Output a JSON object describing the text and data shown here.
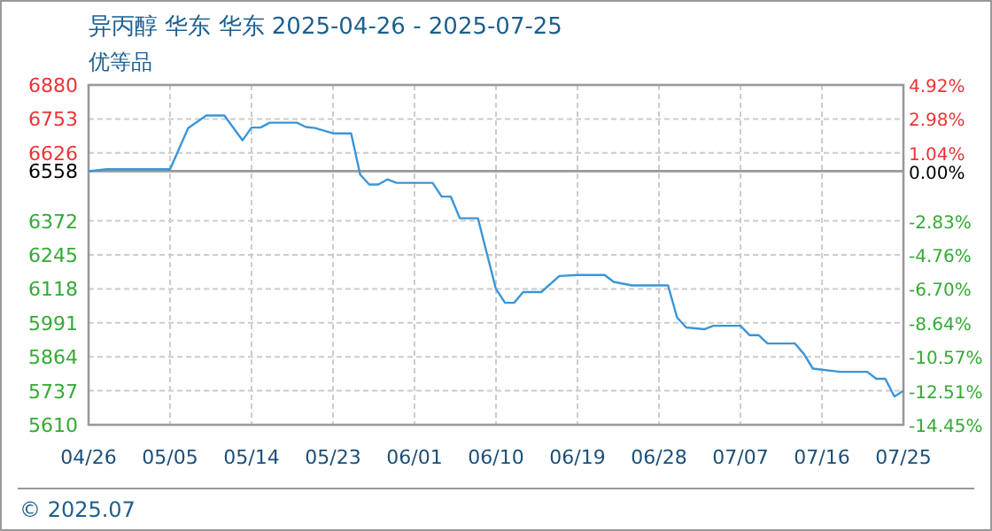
{
  "chart_data": {
    "type": "line",
    "title": "异丙醇 华东 华东 2025-04-26 - 2025-07-25",
    "subtitle": "优等品",
    "annotations": [
      "© 2025.07"
    ],
    "x": [
      "2025-04-26",
      "2025-04-28",
      "2025-05-05",
      "2025-05-07",
      "2025-05-09",
      "2025-05-11",
      "2025-05-13",
      "2025-05-14",
      "2025-05-15",
      "2025-05-16",
      "2025-05-19",
      "2025-05-20",
      "2025-05-21",
      "2025-05-23",
      "2025-05-25",
      "2025-05-26",
      "2025-05-27",
      "2025-05-28",
      "2025-05-29",
      "2025-05-30",
      "2025-06-03",
      "2025-06-04",
      "2025-06-05",
      "2025-06-06",
      "2025-06-08",
      "2025-06-10",
      "2025-06-11",
      "2025-06-12",
      "2025-06-13",
      "2025-06-15",
      "2025-06-17",
      "2025-06-19",
      "2025-06-22",
      "2025-06-23",
      "2025-06-25",
      "2025-06-29",
      "2025-06-30",
      "2025-07-01",
      "2025-07-03",
      "2025-07-04",
      "2025-07-07",
      "2025-07-08",
      "2025-07-09",
      "2025-07-10",
      "2025-07-13",
      "2025-07-14",
      "2025-07-15",
      "2025-07-18",
      "2025-07-21",
      "2025-07-22",
      "2025-07-23",
      "2025-07-24",
      "2025-07-25"
    ],
    "series": [
      {
        "color": "#3a96d8",
        "values": [
          6558,
          6565,
          6565,
          6719,
          6766,
          6766,
          6673,
          6721,
          6721,
          6739,
          6739,
          6723,
          6719,
          6699,
          6699,
          6545,
          6508,
          6508,
          6527,
          6514,
          6514,
          6463,
          6463,
          6382,
          6382,
          6117,
          6066,
          6066,
          6106,
          6106,
          6166,
          6170,
          6170,
          6144,
          6131,
          6131,
          6011,
          5974,
          5967,
          5980,
          5980,
          5945,
          5945,
          5914,
          5914,
          5875,
          5820,
          5808,
          5808,
          5782,
          5782,
          5716,
          5737
        ]
      }
    ],
    "xlim": [
      "2025-04-26",
      "2025-07-25"
    ],
    "xticks": [
      {
        "value": "2025-04-26",
        "label": "04/26"
      },
      {
        "value": "2025-05-05",
        "label": "05/05"
      },
      {
        "value": "2025-05-14",
        "label": "05/14"
      },
      {
        "value": "2025-05-23",
        "label": "05/23"
      },
      {
        "value": "2025-06-01",
        "label": "06/01"
      },
      {
        "value": "2025-06-10",
        "label": "06/10"
      },
      {
        "value": "2025-06-19",
        "label": "06/19"
      },
      {
        "value": "2025-06-28",
        "label": "06/28"
      },
      {
        "value": "2025-07-07",
        "label": "07/07"
      },
      {
        "value": "2025-07-16",
        "label": "07/16"
      },
      {
        "value": "2025-07-25",
        "label": "07/25"
      }
    ],
    "ylim": [
      5610,
      6880
    ],
    "yticks": [
      6880,
      6753,
      6626,
      6558,
      6372,
      6245,
      6118,
      5991,
      5864,
      5737,
      5610
    ],
    "y2lim": [
      -14.45,
      4.92
    ],
    "y2ticks": [
      {
        "value": 4.92,
        "label": "4.92%"
      },
      {
        "value": 2.98,
        "label": "2.98%"
      },
      {
        "value": 1.04,
        "label": "1.04%"
      },
      {
        "value": 0,
        "label": "0.00%"
      },
      {
        "value": -2.83,
        "label": "-2.83%"
      },
      {
        "value": -4.76,
        "label": "-4.76%"
      },
      {
        "value": -6.7,
        "label": "-6.70%"
      },
      {
        "value": -8.64,
        "label": "-8.64%"
      },
      {
        "value": -10.57,
        "label": "-10.57%"
      },
      {
        "value": -12.51,
        "label": "-12.51%"
      },
      {
        "value": -14.45,
        "label": "-14.45%"
      }
    ],
    "ref_lines": [
      {
        "axis": "y",
        "value": 6558,
        "color": "#999999",
        "line_style": "solid"
      }
    ],
    "grid": true,
    "marker": "none",
    "line_style": "solid"
  }
}
